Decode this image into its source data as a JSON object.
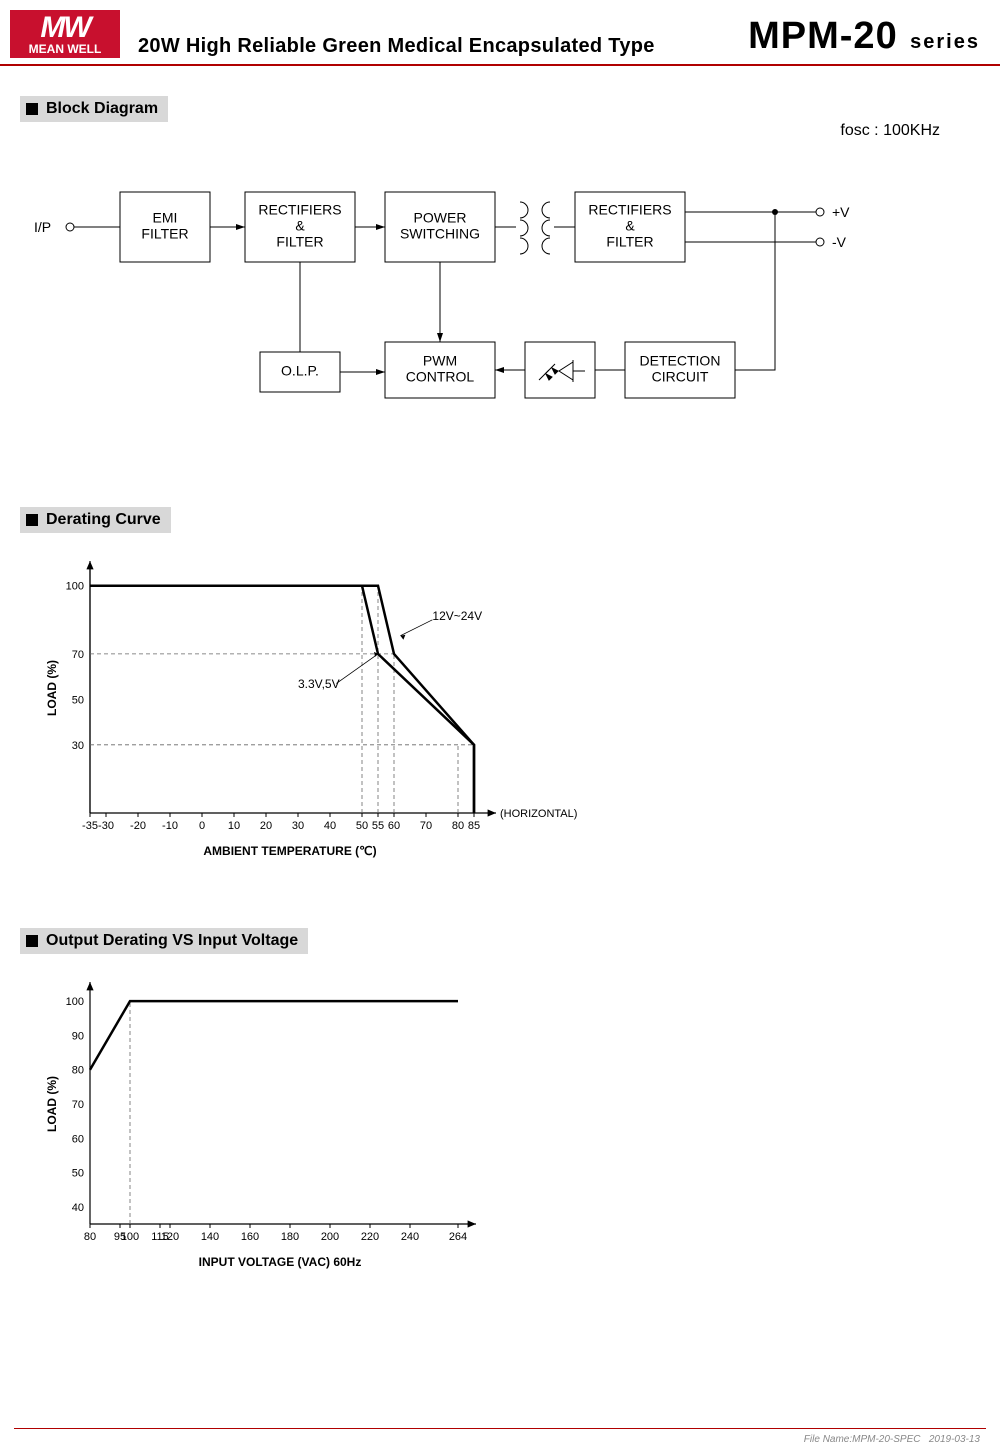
{
  "header": {
    "logo_top": "MW",
    "logo_bottom": "MEAN WELL",
    "subtitle": "20W High Reliable Green Medical Encapsulated Type",
    "model": "MPM-20",
    "series": "series"
  },
  "sections": {
    "block_diagram": "Block Diagram",
    "derating_curve": "Derating Curve",
    "output_derating": "Output Derating VS Input Voltage"
  },
  "block_diagram": {
    "fosc": "fosc : 100KHz",
    "nodes": {
      "ip": "I/P",
      "emi": "EMI\nFILTER",
      "rect1": "RECTIFIERS\n&\nFILTER",
      "power": "POWER\nSWITCHING",
      "rect2": "RECTIFIERS\n&\nFILTER",
      "pos_v": "+V",
      "neg_v": "-V",
      "olp": "O.L.P.",
      "pwm": "PWM\nCONTROL",
      "detect": "DETECTION\nCIRCUIT"
    },
    "box_stroke": "#000000",
    "box_fill": "#ffffff",
    "line_stroke": "#000000",
    "font_size": 14
  },
  "derating_curve": {
    "type": "line",
    "y_label": "LOAD (%)",
    "x_label": "AMBIENT TEMPERATURE (℃)",
    "x_ticks": [
      -35,
      -30,
      -20,
      -10,
      0,
      10,
      20,
      30,
      40,
      50,
      55,
      60,
      70,
      80,
      85
    ],
    "y_ticks": [
      30,
      50,
      70,
      100
    ],
    "xlim": [
      -35,
      90
    ],
    "ylim": [
      0,
      110
    ],
    "series": [
      {
        "label": "3.3V,5V",
        "points": [
          [
            -35,
            100
          ],
          [
            50,
            100
          ],
          [
            55,
            70
          ],
          [
            85,
            30
          ],
          [
            85,
            0
          ]
        ]
      },
      {
        "label": "12V~24V",
        "points": [
          [
            -35,
            100
          ],
          [
            55,
            100
          ],
          [
            60,
            70
          ],
          [
            85,
            30
          ],
          [
            85,
            0
          ]
        ]
      }
    ],
    "annotation_horizontal": "(HORIZONTAL)",
    "line_color": "#000000",
    "line_width": 2.5,
    "grid_dash": "4,3",
    "grid_color": "#666666",
    "axis_width": 1.2,
    "label_fontsize": 12,
    "tick_fontsize": 11
  },
  "output_derating": {
    "type": "line",
    "y_label": "LOAD (%)",
    "x_label": "INPUT VOLTAGE (VAC) 60Hz",
    "x_ticks": [
      80,
      95,
      100,
      115,
      120,
      140,
      160,
      180,
      200,
      220,
      240,
      264
    ],
    "y_ticks": [
      40,
      50,
      60,
      70,
      80,
      90,
      100
    ],
    "xlim": [
      80,
      270
    ],
    "ylim": [
      35,
      105
    ],
    "series": [
      {
        "points": [
          [
            80,
            80
          ],
          [
            100,
            100
          ],
          [
            264,
            100
          ]
        ]
      }
    ],
    "line_color": "#000000",
    "line_width": 2.5,
    "grid_dash": "4,3",
    "grid_color": "#666666",
    "axis_width": 1.2,
    "label_fontsize": 12,
    "tick_fontsize": 11
  },
  "footer": {
    "filename": "File Name:MPM-20-SPEC",
    "date": "2019-03-13"
  }
}
